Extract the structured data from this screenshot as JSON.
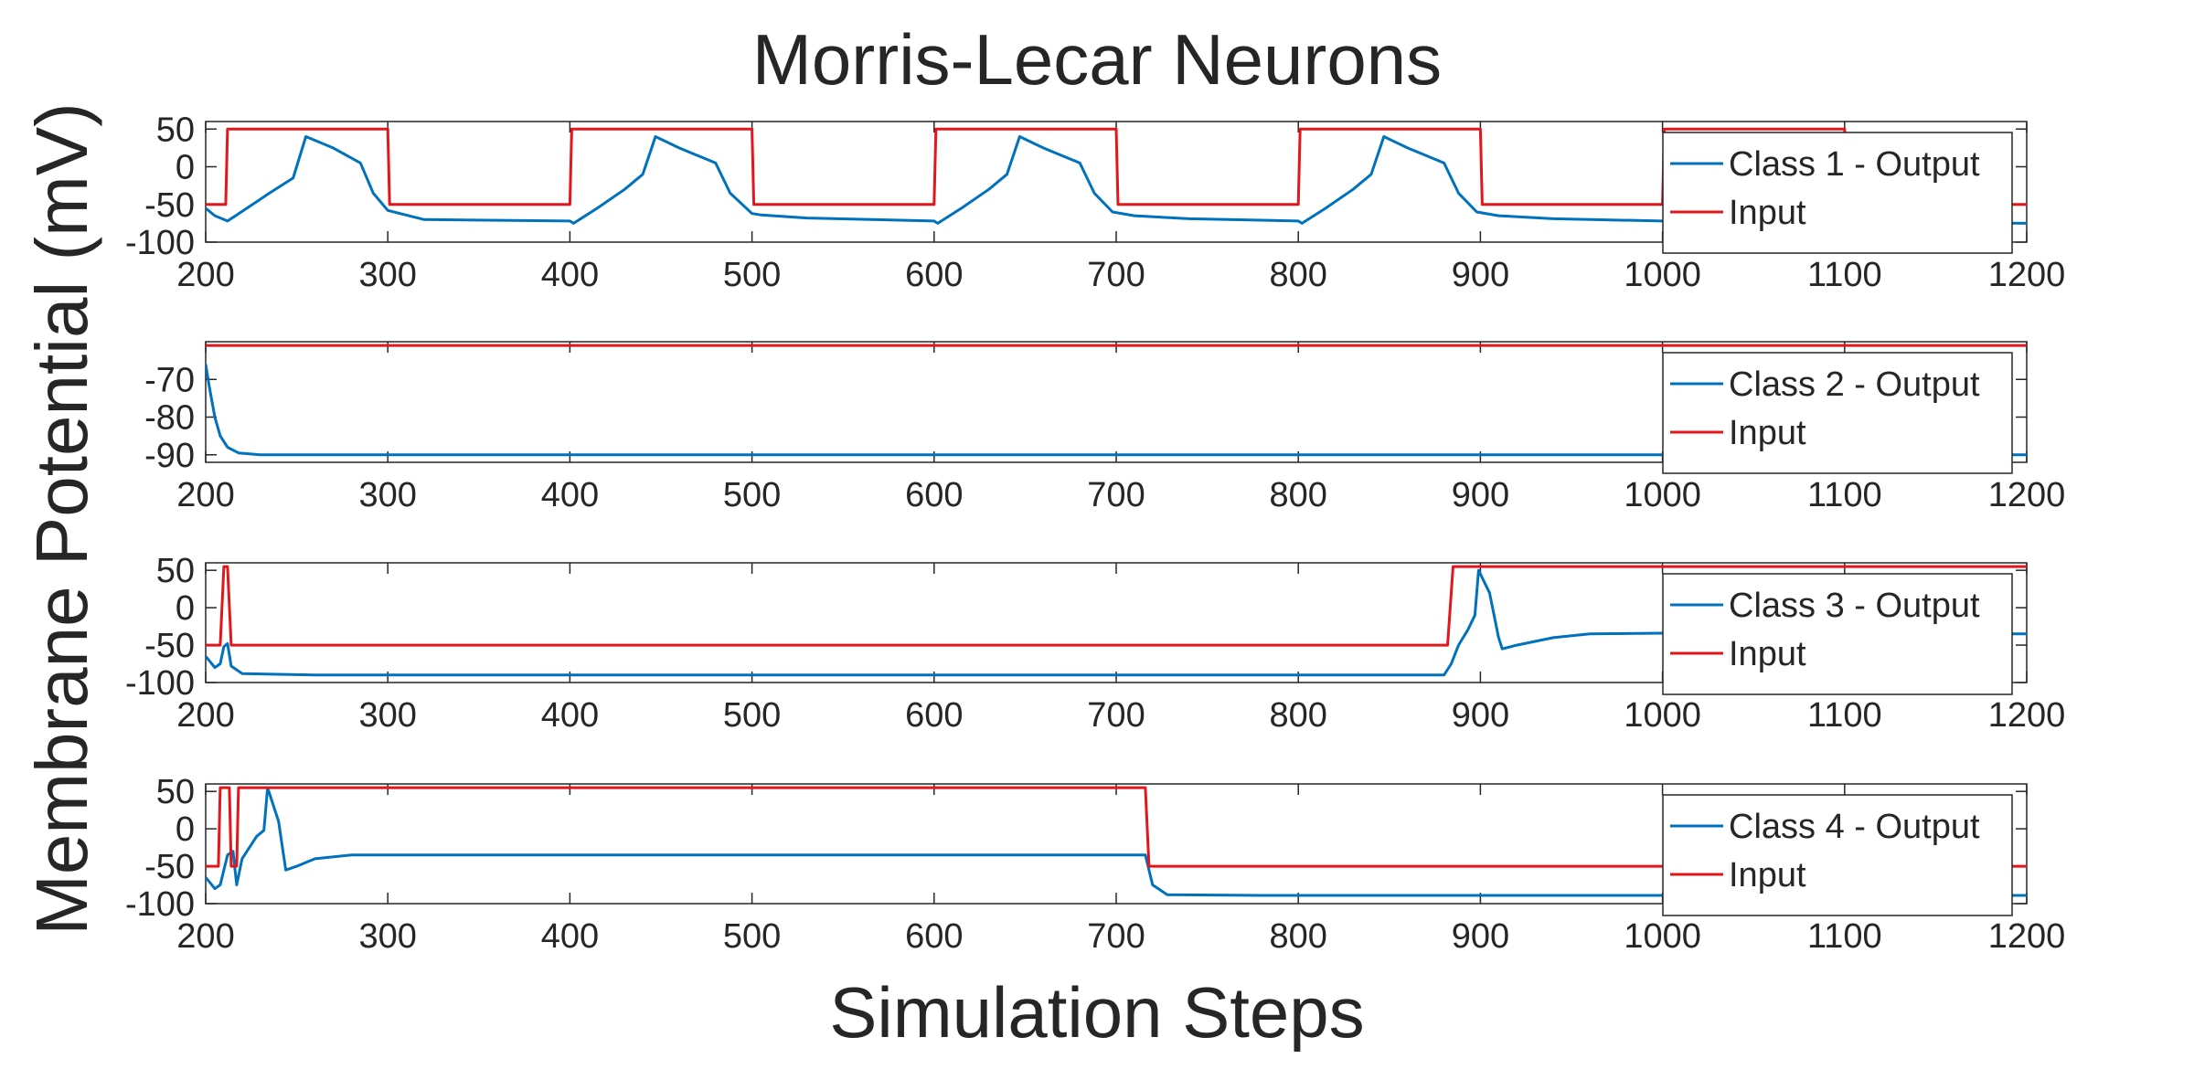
{
  "figure": {
    "title": "Morris-Lecar Neurons",
    "xlabel": "Simulation Steps",
    "ylabel": "Membrane Potential (mV)"
  },
  "colors": {
    "output": "#0072BD",
    "input": "#E3161B",
    "axis": "#262626",
    "box": "#262626"
  },
  "chart_data": [
    {
      "type": "line",
      "xlim": [
        200,
        1200
      ],
      "ylim": [
        -100,
        60
      ],
      "x_ticks": [
        200,
        300,
        400,
        500,
        600,
        700,
        800,
        900,
        1000,
        1100,
        1200
      ],
      "y_ticks": [
        50,
        0,
        -50,
        -100
      ],
      "legend": "right",
      "series": [
        {
          "name": "Class 1 - Output",
          "color": "#0072BD",
          "points": [
            [
              200,
              -55
            ],
            [
              205,
              -65
            ],
            [
              212,
              -72
            ],
            [
              222,
              -56
            ],
            [
              235,
              -35
            ],
            [
              248,
              -15
            ],
            [
              255,
              40
            ],
            [
              270,
              25
            ],
            [
              285,
              5
            ],
            [
              292,
              -35
            ],
            [
              300,
              -58
            ],
            [
              320,
              -70
            ],
            [
              400,
              -72
            ],
            [
              402,
              -75
            ],
            [
              415,
              -55
            ],
            [
              430,
              -30
            ],
            [
              440,
              -10
            ],
            [
              447,
              40
            ],
            [
              460,
              25
            ],
            [
              480,
              5
            ],
            [
              488,
              -35
            ],
            [
              500,
              -62
            ],
            [
              505,
              -64
            ],
            [
              530,
              -68
            ],
            [
              600,
              -72
            ],
            [
              602,
              -75
            ],
            [
              615,
              -55
            ],
            [
              630,
              -30
            ],
            [
              640,
              -10
            ],
            [
              647,
              40
            ],
            [
              660,
              25
            ],
            [
              680,
              5
            ],
            [
              688,
              -35
            ],
            [
              698,
              -60
            ],
            [
              710,
              -65
            ],
            [
              740,
              -69
            ],
            [
              800,
              -72
            ],
            [
              802,
              -75
            ],
            [
              815,
              -55
            ],
            [
              830,
              -30
            ],
            [
              840,
              -10
            ],
            [
              847,
              40
            ],
            [
              860,
              25
            ],
            [
              880,
              5
            ],
            [
              888,
              -35
            ],
            [
              898,
              -60
            ],
            [
              910,
              -65
            ],
            [
              940,
              -69
            ],
            [
              1000,
              -72
            ],
            [
              1200,
              -75
            ]
          ]
        },
        {
          "name": "Input",
          "color": "#E3161B",
          "points": [
            [
              200,
              -50
            ],
            [
              211,
              -50
            ],
            [
              212,
              50
            ],
            [
              300,
              50
            ],
            [
              301,
              -50
            ],
            [
              400,
              -50
            ],
            [
              401,
              50
            ],
            [
              500,
              50
            ],
            [
              501,
              -50
            ],
            [
              600,
              -50
            ],
            [
              601,
              50
            ],
            [
              700,
              50
            ],
            [
              701,
              -50
            ],
            [
              800,
              -50
            ],
            [
              801,
              50
            ],
            [
              900,
              50
            ],
            [
              901,
              -50
            ],
            [
              1000,
              -50
            ],
            [
              1001,
              50
            ],
            [
              1100,
              50
            ],
            [
              1101,
              -50
            ],
            [
              1200,
              -50
            ]
          ]
        }
      ]
    },
    {
      "type": "line",
      "xlim": [
        200,
        1200
      ],
      "ylim": [
        -92,
        -60
      ],
      "x_ticks": [
        200,
        300,
        400,
        500,
        600,
        700,
        800,
        900,
        1000,
        1100,
        1200
      ],
      "y_ticks": [
        -70,
        -80,
        -90
      ],
      "legend": "right",
      "series": [
        {
          "name": "Class 2 - Output",
          "color": "#0072BD",
          "points": [
            [
              200,
              -66
            ],
            [
              202,
              -72
            ],
            [
              205,
              -80
            ],
            [
              208,
              -85
            ],
            [
              212,
              -88
            ],
            [
              218,
              -89.5
            ],
            [
              230,
              -90
            ],
            [
              1200,
              -90
            ]
          ]
        },
        {
          "name": "Input",
          "color": "#E3161B",
          "points": [
            [
              200,
              -61
            ],
            [
              1200,
              -61
            ]
          ]
        }
      ]
    },
    {
      "type": "line",
      "xlim": [
        200,
        1200
      ],
      "ylim": [
        -100,
        60
      ],
      "x_ticks": [
        200,
        300,
        400,
        500,
        600,
        700,
        800,
        900,
        1000,
        1100,
        1200
      ],
      "y_ticks": [
        50,
        0,
        -50,
        -100
      ],
      "legend": "right",
      "series": [
        {
          "name": "Class 3 - Output",
          "color": "#0072BD",
          "points": [
            [
              200,
              -65
            ],
            [
              205,
              -80
            ],
            [
              208,
              -75
            ],
            [
              210,
              -52
            ],
            [
              212,
              -48
            ],
            [
              214,
              -78
            ],
            [
              220,
              -88
            ],
            [
              260,
              -90
            ],
            [
              880,
              -90
            ],
            [
              884,
              -75
            ],
            [
              888,
              -50
            ],
            [
              893,
              -30
            ],
            [
              897,
              -10
            ],
            [
              899,
              50
            ],
            [
              905,
              20
            ],
            [
              910,
              -40
            ],
            [
              912,
              -55
            ],
            [
              920,
              -50
            ],
            [
              940,
              -40
            ],
            [
              960,
              -35
            ],
            [
              1000,
              -34
            ],
            [
              1200,
              -35
            ]
          ]
        },
        {
          "name": "Input",
          "color": "#E3161B",
          "points": [
            [
              200,
              -50
            ],
            [
              208,
              -50
            ],
            [
              210,
              55
            ],
            [
              212,
              55
            ],
            [
              214,
              -50
            ],
            [
              882,
              -50
            ],
            [
              885,
              55
            ],
            [
              1200,
              55
            ]
          ]
        }
      ]
    },
    {
      "type": "line",
      "xlim": [
        200,
        1200
      ],
      "ylim": [
        -100,
        60
      ],
      "x_ticks": [
        200,
        300,
        400,
        500,
        600,
        700,
        800,
        900,
        1000,
        1100,
        1200
      ],
      "y_ticks": [
        50,
        0,
        -50,
        -100
      ],
      "legend": "right",
      "series": [
        {
          "name": "Class 4 - Output",
          "color": "#0072BD",
          "points": [
            [
              200,
              -65
            ],
            [
              205,
              -80
            ],
            [
              208,
              -75
            ],
            [
              212,
              -35
            ],
            [
              215,
              -30
            ],
            [
              217,
              -75
            ],
            [
              220,
              -40
            ],
            [
              228,
              -10
            ],
            [
              232,
              -2
            ],
            [
              234,
              55
            ],
            [
              240,
              10
            ],
            [
              244,
              -55
            ],
            [
              250,
              -50
            ],
            [
              260,
              -40
            ],
            [
              280,
              -35
            ],
            [
              716,
              -35
            ],
            [
              720,
              -75
            ],
            [
              728,
              -88
            ],
            [
              780,
              -89
            ],
            [
              1200,
              -89
            ]
          ]
        },
        {
          "name": "Input",
          "color": "#E3161B",
          "points": [
            [
              200,
              -50
            ],
            [
              207,
              -50
            ],
            [
              208,
              55
            ],
            [
              213,
              55
            ],
            [
              214,
              -50
            ],
            [
              217,
              -50
            ],
            [
              218,
              55
            ],
            [
              716,
              55
            ],
            [
              718,
              -50
            ],
            [
              1200,
              -50
            ]
          ]
        }
      ]
    }
  ]
}
